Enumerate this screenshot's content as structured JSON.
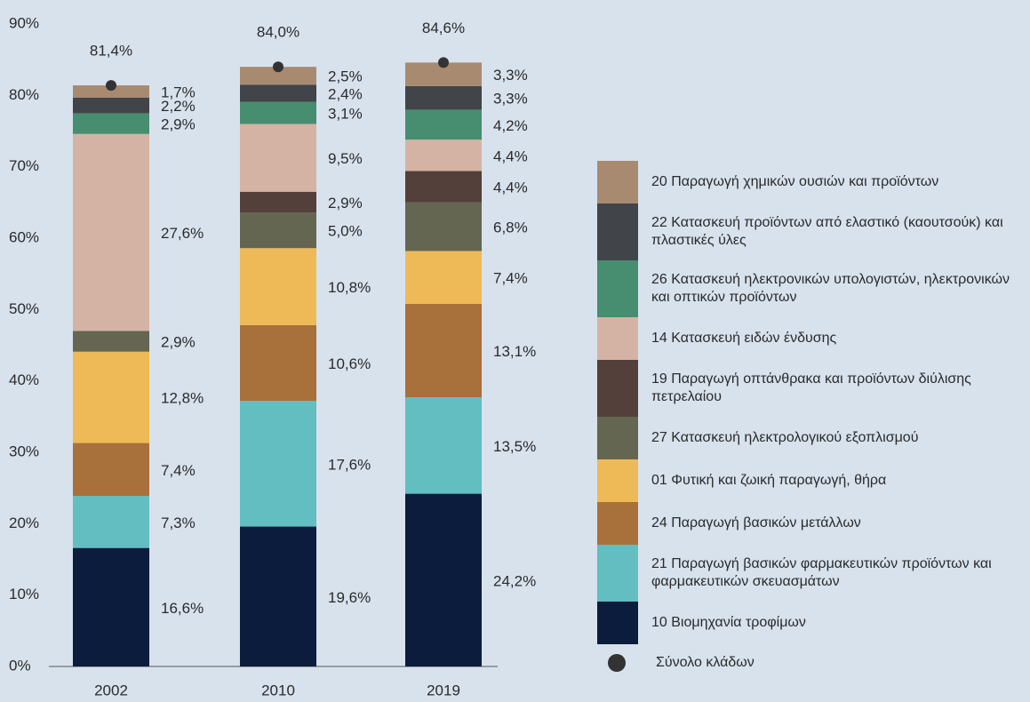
{
  "chart_data": {
    "type": "stacked-bar",
    "categories": [
      "2002",
      "2010",
      "2019"
    ],
    "ylim": [
      0,
      90
    ],
    "yticks": [
      {
        "value": 0,
        "label": "0%"
      },
      {
        "value": 10,
        "label": "10%"
      },
      {
        "value": 20,
        "label": "20%"
      },
      {
        "value": 30,
        "label": "30%"
      },
      {
        "value": 40,
        "label": "40%"
      },
      {
        "value": 50,
        "label": "50%"
      },
      {
        "value": 60,
        "label": "60%"
      },
      {
        "value": 70,
        "label": "70%"
      },
      {
        "value": 80,
        "label": "80%"
      },
      {
        "value": 90,
        "label": "90%"
      }
    ],
    "grid": false,
    "legend": "right",
    "series": [
      {
        "name": "10 Βιομηχανία τροφίμων",
        "color": "#0c1c3c",
        "values": [
          16.6,
          19.6,
          24.2
        ],
        "value_labels": [
          "16,6%",
          "19,6%",
          "24,2%"
        ]
      },
      {
        "name": "21 Παραγωγή βασικών φαρμακευτικών προϊόντων και φαρμακευτικών σκευασμάτων",
        "color": "#62bec1",
        "values": [
          7.3,
          17.6,
          13.5
        ],
        "value_labels": [
          "7,3%",
          "17,6%",
          "13,5%"
        ]
      },
      {
        "name": "24 Παραγωγή βασικών μετάλλων",
        "color": "#a8703b",
        "values": [
          7.4,
          10.6,
          13.1
        ],
        "value_labels": [
          "7,4%",
          "10,6%",
          "13,1%"
        ]
      },
      {
        "name": "01 Φυτική και ζωική παραγωγή, θήρα",
        "color": "#eeba57",
        "values": [
          12.8,
          10.8,
          7.4
        ],
        "value_labels": [
          "12,8%",
          "10,8%",
          "7,4%"
        ]
      },
      {
        "name": "27 Κατασκευή ηλεκτρολογικού εξοπλισμού",
        "color": "#646651",
        "values": [
          2.9,
          5.0,
          6.8
        ],
        "value_labels": [
          "2,9%",
          "5,0%",
          "6,8%"
        ]
      },
      {
        "name": "19 Παραγωγή οπτάνθρακα και προϊόντων διύλισης πετρελαίου",
        "color": "#53403b",
        "values": [
          null,
          2.9,
          4.4
        ],
        "value_labels": [
          null,
          "2,9%",
          "4,4%"
        ]
      },
      {
        "name": "14 Κατασκευή ειδών ένδυσης",
        "color": "#d5b3a4",
        "values": [
          27.6,
          9.5,
          4.4
        ],
        "value_labels": [
          "27,6%",
          "9,5%",
          "4,4%"
        ]
      },
      {
        "name": "26 Κατασκευή ηλεκτρονικών υπολογιστών, ηλεκτρονικών και οπτικών προϊόντων",
        "color": "#478d6f",
        "values": [
          2.9,
          3.1,
          4.2
        ],
        "value_labels": [
          "2,9%",
          "3,1%",
          "4,2%"
        ]
      },
      {
        "name": "22 Κατασκευή προϊόντων από ελαστικό (καουτσούκ) και πλαστικές ύλες",
        "color": "#414448",
        "values": [
          2.2,
          2.4,
          3.3
        ],
        "value_labels": [
          "2,2%",
          "2,4%",
          "3,3%"
        ]
      },
      {
        "name": "20 Παραγωγή χημικών ουσιών και προϊόντων",
        "color": "#a88a71",
        "values": [
          1.7,
          2.5,
          3.3
        ],
        "value_labels": [
          "1,7%",
          "2,5%",
          "3,3%"
        ]
      }
    ],
    "total": {
      "name": "Σύνολο κλάδων",
      "color": "#333333",
      "values": [
        81.4,
        84.0,
        84.6
      ],
      "value_labels": [
        "81,4%",
        "84,0%",
        "84,6%"
      ]
    }
  }
}
